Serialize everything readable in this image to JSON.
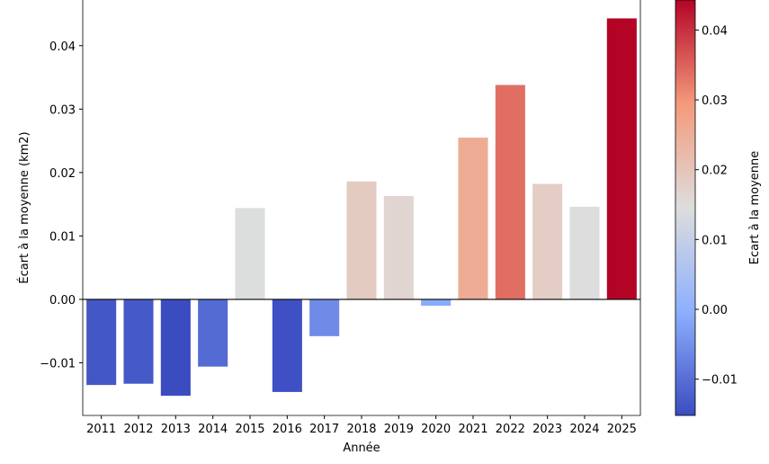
{
  "chart_data": {
    "type": "bar",
    "xlabel": "Année",
    "ylabel": "Écart à la moyenne (km2)",
    "categories": [
      "2011",
      "2012",
      "2013",
      "2014",
      "2015",
      "2016",
      "2017",
      "2018",
      "2019",
      "2020",
      "2021",
      "2022",
      "2023",
      "2024",
      "2025"
    ],
    "values": [
      -0.0135,
      -0.0133,
      -0.0152,
      -0.0106,
      0.0144,
      -0.0146,
      -0.0058,
      0.0186,
      0.0163,
      -0.001,
      0.0255,
      0.0338,
      0.0182,
      0.0146,
      0.0443
    ],
    "ylim": [
      -0.0183,
      0.0472
    ],
    "yticks": [
      -0.01,
      0.0,
      0.01,
      0.02,
      0.03,
      0.04
    ],
    "ytick_labels": [
      "−0.01",
      "0.00",
      "0.01",
      "0.02",
      "0.03",
      "0.04"
    ],
    "grid": false,
    "colormap": "coolwarm",
    "colorbar": {
      "label": "Ecart à la moyenne",
      "range": [
        -0.0152,
        0.0443
      ],
      "ticks": [
        -0.01,
        0.0,
        0.01,
        0.02,
        0.03,
        0.04
      ],
      "tick_labels": [
        "−0.01",
        "0.00",
        "0.01",
        "0.02",
        "0.03",
        "0.04"
      ]
    }
  }
}
